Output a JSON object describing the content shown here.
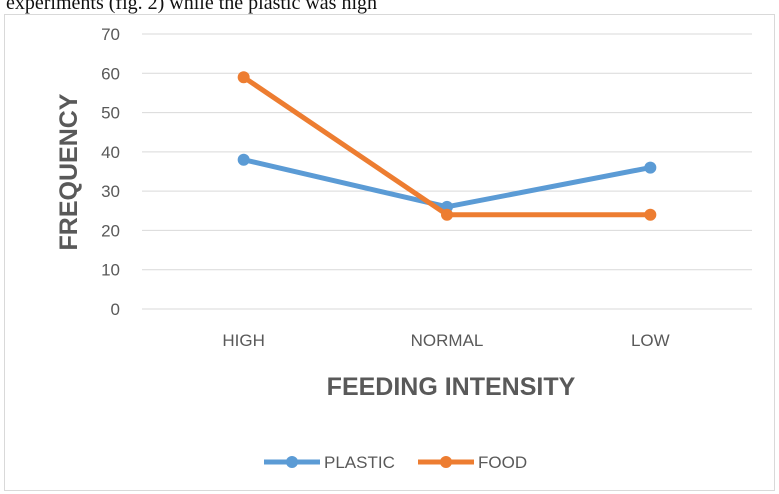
{
  "caption": "experiments (fig. 2) while the plastic was high",
  "chart_data": {
    "type": "line",
    "categories": [
      "HIGH",
      "NORMAL",
      "LOW"
    ],
    "series": [
      {
        "name": "PLASTIC",
        "values": [
          38,
          26,
          36
        ],
        "color": "#5b9bd5"
      },
      {
        "name": "FOOD",
        "values": [
          59,
          24,
          24
        ],
        "color": "#ed7d31"
      }
    ],
    "xlabel": "FEEDING INTENSITY",
    "ylabel": "FREQUENCY",
    "ylim": [
      0,
      70
    ],
    "yticks": [
      0,
      10,
      20,
      30,
      40,
      50,
      60,
      70
    ],
    "grid": true,
    "legend": "bottom"
  }
}
